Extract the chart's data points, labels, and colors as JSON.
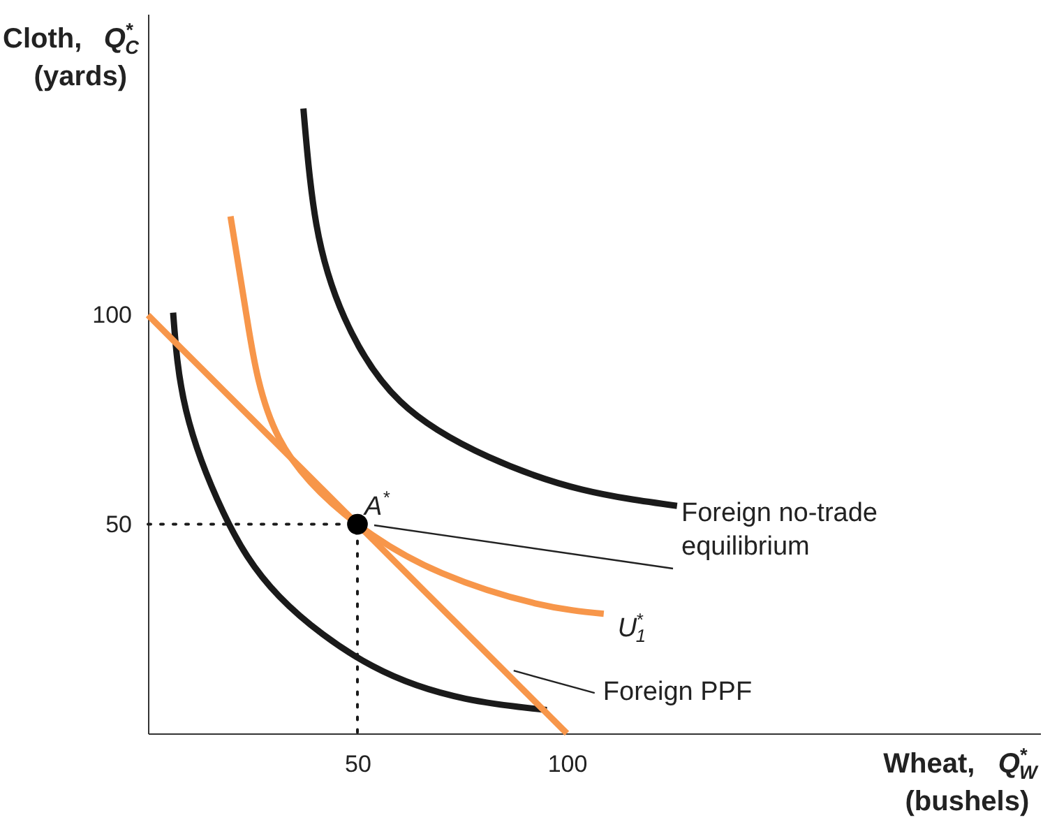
{
  "chart_data": {
    "type": "line",
    "xlabel": "Wheat, Q$_{W}$$^{*}$\n(bushels)",
    "ylabel": "Cloth, Q$_{C}$$^{*}$\n(yards)",
    "xlim": [
      0,
      213
    ],
    "ylim": [
      0,
      172
    ],
    "xticks": [
      50,
      100
    ],
    "yticks": [
      50,
      100
    ],
    "grid": false,
    "series": [
      {
        "color": "#1a1a1a",
        "x": [
          37.1,
          40.2,
          46.9,
          60.2,
          81.3,
          103.6,
          126.3
        ],
        "values": [
          149.4,
          121.7,
          99.4,
          79.4,
          66.1,
          58.3,
          54.4
        ]
      },
      {
        "color": "#1a1a1a",
        "x": [
          6,
          9.1,
          18,
          31.3,
          53.6,
          75.8,
          95.2
        ],
        "values": [
          100.6,
          77.2,
          52.8,
          32.8,
          16.1,
          8.3,
          5.6
        ]
      },
      {
        "color": "#f7964a",
        "x": [
          0,
          100
        ],
        "values": [
          100,
          0
        ]
      },
      {
        "color": "#f7964a",
        "x": [
          19.7,
          23.6,
          31.3,
          50,
          70.2,
          92.4,
          108.8
        ],
        "values": [
          123.6,
          99.4,
          70.6,
          50,
          38.3,
          31.1,
          28.6
        ]
      },
      {
        "color": "#1a1a1a",
        "line_style": "dotted",
        "x": [
          0,
          50,
          50
        ],
        "values": [
          50,
          50,
          0
        ]
      },
      {
        "type": "scatter",
        "marker": "circle",
        "color": "#000000",
        "x": [
          50
        ],
        "values": [
          50
        ]
      }
    ],
    "annotations": [
      {
        "text": "A$^{*}$",
        "x": 50,
        "y": 50
      },
      "Foreign no-trade equilibrium",
      {
        "text": "U$_{1}$$^{*}$",
        "x": 108.8,
        "y": 28.6
      },
      {
        "text": "Foreign PPF",
        "x": 87.3,
        "y": 15
      }
    ]
  }
}
